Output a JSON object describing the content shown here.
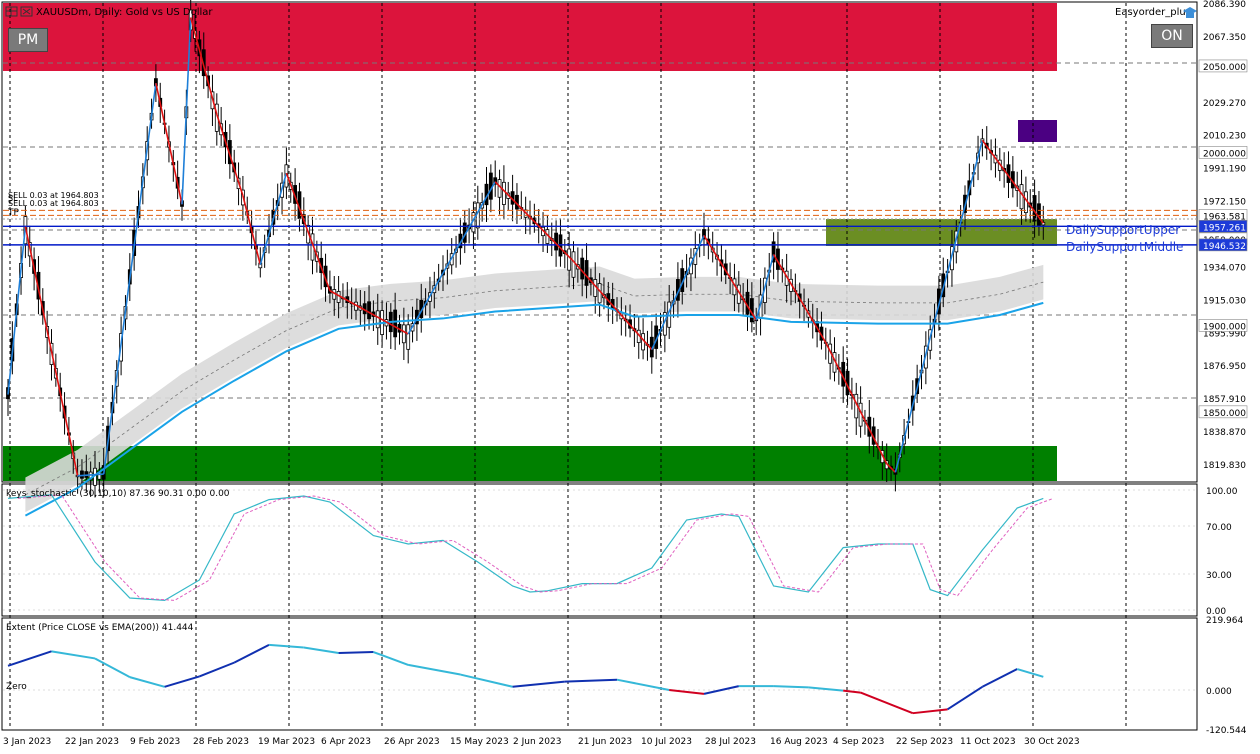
{
  "window": {
    "symbol_title": "XAUUSDm, Daily:  Gold vs US Dollar",
    "brand": "Easyorder_plus",
    "pm_button": "PM",
    "on_button": "ON"
  },
  "price_panel": {
    "price_axis_labels": [
      "2086.390",
      "2067.350",
      "2029.270",
      "2010.230",
      "1991.190",
      "1972.150",
      "1934.070",
      "1915.030",
      "1895.990",
      "1876.950",
      "1857.910",
      "1838.870",
      "1819.830"
    ],
    "level_tags": [
      {
        "price": 2050.0,
        "label": "2050.000",
        "color": "#ffffff"
      },
      {
        "price": 2000.0,
        "label": "2000.000",
        "color": "#ffffff"
      },
      {
        "price": 1963.581,
        "label": "1963.581",
        "color": "#ffffff"
      },
      {
        "price": 1957.261,
        "label": "1957.261",
        "color": "#1d3bd8"
      },
      {
        "price": 1950.0,
        "label": "1950.000",
        "color": "#ffffff"
      },
      {
        "price": 1946.532,
        "label": "1946.532",
        "color": "#1d3bd8"
      },
      {
        "price": 1900.0,
        "label": "1900.000",
        "color": "#ffffff"
      },
      {
        "price": 1850.0,
        "label": "1850.000",
        "color": "#ffffff"
      }
    ],
    "order_text_1": "SELL 0.03 at 1964.803",
    "order_text_2": "SELL 0.03 at 1964.803",
    "tp_text": "TP",
    "sl_text": "SL",
    "support_upper_label": "DailySupportUpper",
    "support_middle_label": "DailySupportMiddle",
    "colors": {
      "resistance_zone": "#dc143c",
      "support_zone": "#008000",
      "daily_zone": "#6b8e23",
      "purple_box": "#4b0082",
      "ema_line": "#1aa3e8",
      "zigzag_up": "#1e7fd8",
      "zigzag_down": "#e01010",
      "support_lines": "#0018c8"
    }
  },
  "stochastic_panel": {
    "title": "keys_stochastic (30,10,10) 87.36 90.31 0.00 0.00",
    "axis_labels": [
      "100.00",
      "70.00",
      "30.00",
      "0.00"
    ]
  },
  "extent_panel": {
    "title": "Extent (Price CLOSE vs EMA(200)) 41.444",
    "zero_label": "Zero",
    "axis_labels": [
      "219.964",
      "0.000",
      "-120.544"
    ]
  },
  "time_axis": [
    "3 Jan 2023",
    "22 Jan 2023",
    "9 Feb 2023",
    "28 Feb 2023",
    "19 Mar 2023",
    "6 Apr 2023",
    "26 Apr 2023",
    "15 May 2023",
    "2 Jun 2023",
    "21 Jun 2023",
    "10 Jul 2023",
    "28 Jul 2023",
    "16 Aug 2023",
    "4 Sep 2023",
    "22 Sep 2023",
    "11 Oct 2023",
    "30 Oct 2023"
  ],
  "chart_data": {
    "type": "line",
    "title": "XAUUSDm, Daily:  Gold vs US Dollar",
    "x_dates": [
      "3 Jan 2023",
      "22 Jan 2023",
      "9 Feb 2023",
      "28 Feb 2023",
      "19 Mar 2023",
      "6 Apr 2023",
      "26 Apr 2023",
      "15 May 2023",
      "2 Jun 2023",
      "21 Jun 2023",
      "10 Jul 2023",
      "28 Jul 2023",
      "16 Aug 2023",
      "4 Sep 2023",
      "22 Sep 2023",
      "11 Oct 2023",
      "30 Oct 2023"
    ],
    "ylim": [
      1810,
      2086.39
    ],
    "price_zigzag": [
      [
        0,
        1860
      ],
      [
        2,
        1957
      ],
      [
        8,
        1813
      ],
      [
        11,
        1814
      ],
      [
        17,
        2040
      ],
      [
        20,
        1970
      ],
      [
        21,
        2078
      ],
      [
        24,
        2022
      ],
      [
        27,
        1975
      ],
      [
        29,
        1935
      ],
      [
        32,
        1988
      ],
      [
        37,
        1920
      ],
      [
        46,
        1895
      ],
      [
        56,
        1983
      ],
      [
        65,
        1937
      ],
      [
        74,
        1886
      ],
      [
        80,
        1952
      ],
      [
        86,
        1903
      ],
      [
        88,
        1941
      ],
      [
        94,
        1890
      ],
      [
        101,
        1820
      ],
      [
        102,
        1815
      ],
      [
        106,
        1893
      ],
      [
        112,
        2007
      ],
      [
        119,
        1959
      ]
    ],
    "ema200": [
      [
        2,
        1790
      ],
      [
        8,
        1806
      ],
      [
        14,
        1828
      ],
      [
        20,
        1850
      ],
      [
        26,
        1868
      ],
      [
        32,
        1885
      ],
      [
        38,
        1898
      ],
      [
        44,
        1902
      ],
      [
        50,
        1904
      ],
      [
        56,
        1908
      ],
      [
        62,
        1910
      ],
      [
        68,
        1912
      ],
      [
        72,
        1905
      ],
      [
        78,
        1906
      ],
      [
        84,
        1906
      ],
      [
        90,
        1902
      ],
      [
        100,
        1901
      ],
      [
        108,
        1901
      ],
      [
        114,
        1906
      ],
      [
        119,
        1913
      ]
    ],
    "stochastic_main": [
      [
        0,
        93
      ],
      [
        5,
        96
      ],
      [
        10,
        40
      ],
      [
        14,
        10
      ],
      [
        18,
        8
      ],
      [
        22,
        25
      ],
      [
        26,
        80
      ],
      [
        30,
        92
      ],
      [
        34,
        95
      ],
      [
        37,
        90
      ],
      [
        42,
        62
      ],
      [
        46,
        55
      ],
      [
        50,
        58
      ],
      [
        54,
        40
      ],
      [
        58,
        20
      ],
      [
        60,
        15
      ],
      [
        62,
        16
      ],
      [
        66,
        22
      ],
      [
        70,
        22
      ],
      [
        74,
        35
      ],
      [
        78,
        75
      ],
      [
        82,
        80
      ],
      [
        84,
        78
      ],
      [
        88,
        20
      ],
      [
        92,
        15
      ],
      [
        96,
        52
      ],
      [
        100,
        55
      ],
      [
        104,
        55
      ],
      [
        106,
        17
      ],
      [
        108,
        12
      ],
      [
        112,
        50
      ],
      [
        116,
        85
      ],
      [
        119,
        93
      ]
    ],
    "extent": [
      [
        0,
        75
      ],
      [
        5,
        120
      ],
      [
        10,
        98
      ],
      [
        14,
        40
      ],
      [
        18,
        10
      ],
      [
        22,
        42
      ],
      [
        26,
        85
      ],
      [
        30,
        140
      ],
      [
        34,
        132
      ],
      [
        38,
        115
      ],
      [
        42,
        118
      ],
      [
        46,
        78
      ],
      [
        52,
        48
      ],
      [
        58,
        10
      ],
      [
        64,
        26
      ],
      [
        70,
        32
      ],
      [
        76,
        0
      ],
      [
        80,
        -12
      ],
      [
        84,
        12
      ],
      [
        88,
        12
      ],
      [
        92,
        8
      ],
      [
        96,
        -2
      ],
      [
        98,
        -8
      ],
      [
        104,
        -72
      ],
      [
        108,
        -60
      ],
      [
        112,
        10
      ],
      [
        116,
        65
      ],
      [
        119,
        41
      ]
    ]
  }
}
